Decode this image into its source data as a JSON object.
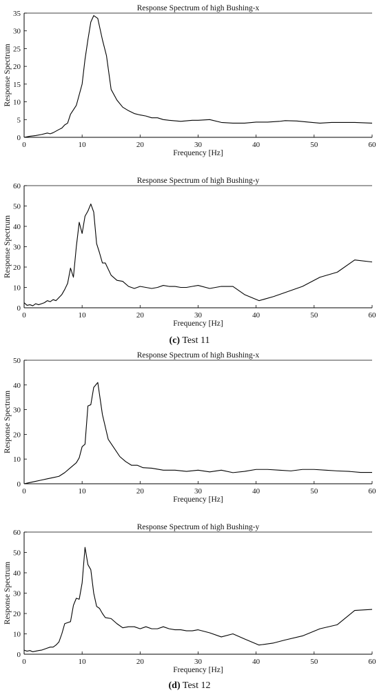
{
  "captions": [
    {
      "letter": "(c)",
      "text": " Test 11"
    },
    {
      "letter": "(d)",
      "text": " Test 12"
    }
  ],
  "chart_data": [
    {
      "type": "line",
      "title": "Response Spectrum of high Bushing-x",
      "xlabel": "Frequency [Hz]",
      "ylabel": "Response Spectrum",
      "xlim": [
        0,
        60
      ],
      "ylim": [
        0,
        35
      ],
      "xticks": [
        0,
        10,
        20,
        30,
        40,
        50,
        60
      ],
      "yticks": [
        0,
        5,
        10,
        15,
        20,
        25,
        30,
        35
      ],
      "grid": false,
      "x": [
        0,
        1,
        2,
        3,
        4,
        4.5,
        5,
        6,
        6.5,
        7,
        7.5,
        8,
        9,
        10,
        10.5,
        11,
        11.5,
        12,
        12.7,
        13.5,
        14.2,
        15,
        16,
        17,
        18,
        19,
        20,
        21,
        22,
        23,
        24,
        25,
        27,
        29,
        30,
        32,
        34,
        36,
        38,
        40,
        42,
        44,
        45,
        47,
        49,
        51,
        53,
        55,
        57,
        60
      ],
      "y": [
        0,
        0.3,
        0.5,
        0.8,
        1.2,
        1.0,
        1.3,
        2.2,
        2.6,
        3.5,
        4.0,
        6.5,
        9.0,
        15,
        22,
        27.5,
        32.5,
        34.3,
        33.5,
        27.5,
        23,
        13.5,
        10.5,
        8.5,
        7.5,
        6.7,
        6.3,
        6.0,
        5.5,
        5.5,
        5.0,
        4.8,
        4.5,
        4.8,
        4.8,
        5.0,
        4.2,
        4.0,
        4.0,
        4.3,
        4.3,
        4.5,
        4.7,
        4.6,
        4.3,
        4.0,
        4.2,
        4.2,
        4.2,
        4.0
      ]
    },
    {
      "type": "line",
      "title": "Response Spectrum of high Bushing-y",
      "xlabel": "Frequency [Hz]",
      "ylabel": "Response Spectrum",
      "xlim": [
        0,
        60
      ],
      "ylim": [
        0,
        60
      ],
      "xticks": [
        0,
        10,
        20,
        30,
        40,
        50,
        60
      ],
      "yticks": [
        0,
        10,
        20,
        30,
        40,
        50,
        60
      ],
      "grid": false,
      "x": [
        0,
        0.5,
        1,
        1.5,
        2,
        2.5,
        3,
        3.5,
        4,
        4.5,
        5,
        5.5,
        6,
        6.5,
        7,
        7.5,
        8,
        8.5,
        9,
        9.5,
        10,
        10.5,
        11,
        11.5,
        12,
        12.5,
        13,
        13.5,
        14,
        15,
        16,
        17,
        18,
        19,
        20,
        21,
        22,
        23,
        24,
        25,
        26,
        27,
        28,
        29,
        30,
        32,
        34,
        36,
        38,
        40.5,
        43,
        45,
        48,
        51,
        54,
        57,
        60
      ],
      "y": [
        2.5,
        1.2,
        1.5,
        1.0,
        2.0,
        1.5,
        2.0,
        2.5,
        3.5,
        3.0,
        4.0,
        3.5,
        5.0,
        6.5,
        9.0,
        12.0,
        19.5,
        15.0,
        30.0,
        42.0,
        36.5,
        45.0,
        47.5,
        51.0,
        47.0,
        31.5,
        27.0,
        22.0,
        22.0,
        16.0,
        13.5,
        13.0,
        10.5,
        9.5,
        10.5,
        10.0,
        9.5,
        10.0,
        11.0,
        10.5,
        10.5,
        10.0,
        10.0,
        10.5,
        11.0,
        9.5,
        10.5,
        10.5,
        6.5,
        3.5,
        5.5,
        7.5,
        10.5,
        15.0,
        17.5,
        23.5,
        22.5
      ]
    },
    {
      "type": "line",
      "title": "Response Spectrum of high Bushing-x",
      "xlabel": "Frequency [Hz]",
      "ylabel": "Response Spectrum",
      "xlim": [
        0,
        60
      ],
      "ylim": [
        0,
        50
      ],
      "xticks": [
        0,
        10,
        20,
        30,
        40,
        50,
        60
      ],
      "yticks": [
        0,
        10,
        20,
        30,
        40,
        50
      ],
      "grid": false,
      "x": [
        0,
        1,
        2,
        3,
        4,
        5,
        6,
        7,
        8,
        9,
        9.5,
        10,
        10.5,
        11,
        11.5,
        12,
        12.7,
        13.5,
        14.5,
        15.5,
        16.5,
        17.5,
        18.5,
        19.5,
        20.5,
        22,
        24,
        26,
        28,
        30,
        32,
        34,
        36,
        38,
        40,
        42,
        44,
        46,
        48,
        50,
        52,
        54,
        56,
        58,
        60
      ],
      "y": [
        0,
        0.5,
        1.0,
        1.5,
        2.0,
        2.5,
        3.0,
        4.5,
        6.5,
        8.5,
        10.5,
        15.0,
        16.0,
        31.5,
        32.0,
        39.0,
        41.0,
        28.0,
        18.0,
        14.5,
        11.0,
        9.0,
        7.5,
        7.5,
        6.5,
        6.3,
        5.5,
        5.5,
        5.0,
        5.5,
        4.8,
        5.5,
        4.5,
        5.0,
        5.8,
        5.8,
        5.5,
        5.2,
        5.8,
        5.8,
        5.5,
        5.2,
        5.0,
        4.6,
        4.6
      ]
    },
    {
      "type": "line",
      "title": "Response Spectrum of high Bushing-y",
      "xlabel": "Frequency [Hz]",
      "ylabel": "Response Spectrum",
      "xlim": [
        0,
        60
      ],
      "ylim": [
        0,
        60
      ],
      "xticks": [
        0,
        10,
        20,
        30,
        40,
        50,
        60
      ],
      "yticks": [
        0,
        10,
        20,
        30,
        40,
        50,
        60
      ],
      "grid": false,
      "x": [
        0,
        0.5,
        1,
        1.5,
        2,
        2.5,
        3,
        3.5,
        4,
        4.5,
        5,
        5.5,
        6,
        6.5,
        7,
        7.5,
        8,
        8.5,
        9,
        9.5,
        10,
        10.5,
        11,
        11.5,
        12,
        12.5,
        13,
        13.5,
        14,
        15,
        16,
        17,
        18,
        19,
        20,
        21,
        22,
        23,
        24,
        25,
        26,
        27,
        28,
        29,
        30,
        32,
        34,
        36,
        38,
        40.5,
        43,
        45,
        48,
        51,
        54,
        57,
        60
      ],
      "y": [
        2.0,
        1.5,
        1.8,
        1.2,
        1.5,
        1.8,
        2.0,
        2.5,
        3.0,
        3.5,
        3.5,
        4.5,
        6.0,
        10.0,
        15.0,
        15.5,
        16.0,
        24.0,
        27.5,
        27.0,
        35.0,
        52.5,
        44.0,
        41.5,
        30.0,
        23.5,
        22.5,
        20.0,
        18.0,
        17.5,
        15.0,
        13.0,
        13.5,
        13.5,
        12.5,
        13.5,
        12.5,
        12.5,
        13.5,
        12.5,
        12.0,
        12.0,
        11.5,
        11.5,
        12.0,
        10.5,
        8.5,
        10.0,
        7.5,
        4.5,
        5.5,
        7.0,
        9.0,
        12.5,
        14.5,
        21.5,
        22.0
      ]
    }
  ]
}
